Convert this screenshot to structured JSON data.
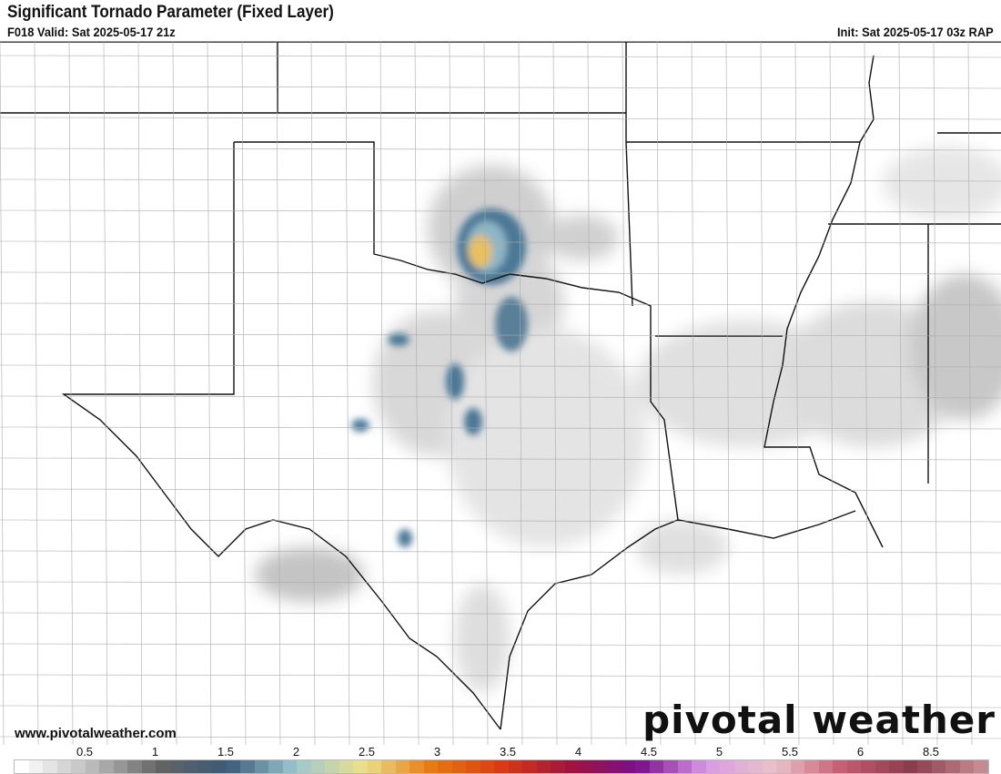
{
  "header": {
    "title": "Significant Tornado Parameter (Fixed Layer)",
    "valid": "F018 Valid: Sat 2025-05-17 21z",
    "init": "Init: Sat 2025-05-17 03z RAP"
  },
  "footer": {
    "website": "www.pivotalweather.com",
    "logo": "pivotal weather"
  },
  "colorbar": {
    "tick_labels": [
      "0.5",
      "1",
      "1.5",
      "2",
      "2.5",
      "3",
      "3.5",
      "4",
      "4.5",
      "5",
      "5.5",
      "6",
      "8.5"
    ],
    "color_stops": [
      "#ffffff",
      "#bdbdbd",
      "#646464",
      "#3a5a78",
      "#9cc7d0",
      "#ece08a",
      "#e6780f",
      "#db3a14",
      "#a0143c",
      "#7a0f8c",
      "#d99be6",
      "#eac2c8",
      "#c45a70",
      "#8a3c4c",
      "#c48c90"
    ]
  },
  "map": {
    "region": "Southern Plains / Texas",
    "shading_colors": {
      "light": "#e0e0e0",
      "mid": "#a8a8a8",
      "dark": "#6e6e6e",
      "blue": "#4c7896",
      "lightblue": "#8fb6c6",
      "yellow": "#e8c060"
    }
  }
}
